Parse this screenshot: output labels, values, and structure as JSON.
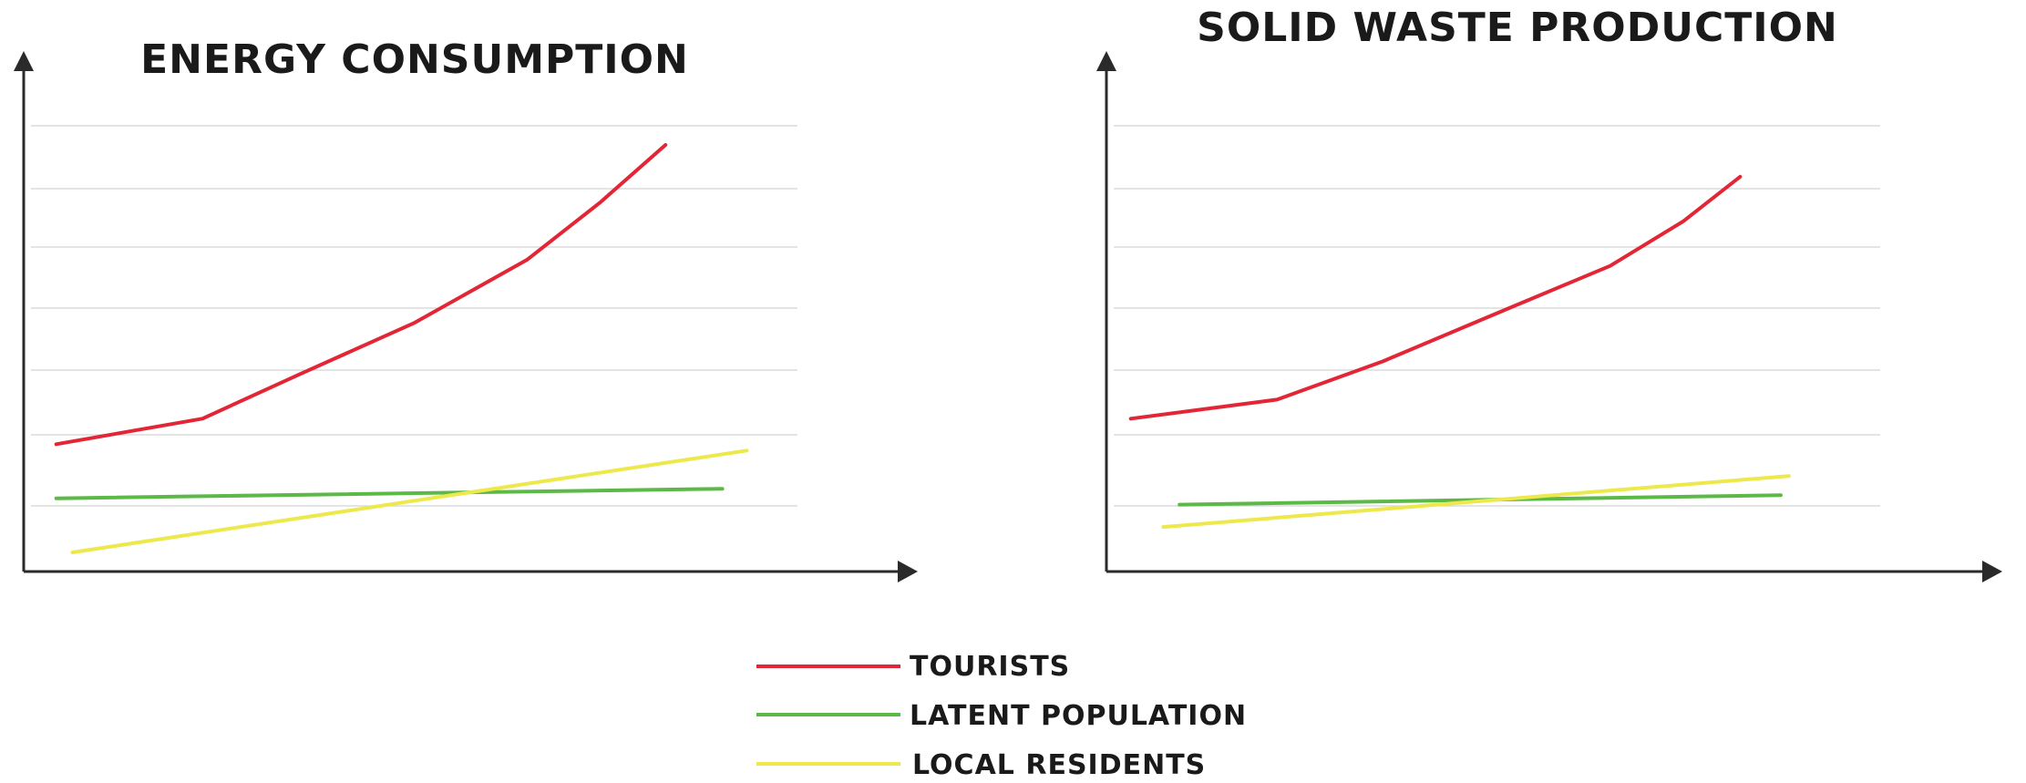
{
  "colors": {
    "tourists": "#e32636",
    "latent_population": "#5cb947",
    "local_residents": "#ede84b",
    "axis": "#2a2a2a",
    "grid": "#d3d3d3"
  },
  "legend": [
    {
      "key": "tourists",
      "label": "TOURISTS"
    },
    {
      "key": "latent_population",
      "label": "LATENT POPULATION"
    },
    {
      "key": "local_residents",
      "label": "LOCAL RESIDENTS"
    }
  ],
  "chart_data": [
    {
      "type": "line",
      "title": "ENERGY CONSUMPTION",
      "xlabel": "",
      "ylabel": "",
      "grid": true,
      "legend_placement": "bottom-center",
      "xlim": [
        0,
        10
      ],
      "ylim": [
        0,
        7
      ],
      "series": [
        {
          "name": "TOURISTS",
          "color_key": "tourists",
          "x": [
            0.4,
            2.2,
            3.4,
            4.8,
            6.2,
            7.1,
            7.9
          ],
          "y": [
            2.0,
            2.4,
            3.1,
            3.9,
            4.9,
            5.8,
            6.7
          ]
        },
        {
          "name": "LATENT POPULATION",
          "color_key": "latent_population",
          "x": [
            0.4,
            8.6
          ],
          "y": [
            1.15,
            1.3
          ]
        },
        {
          "name": "LOCAL RESIDENTS",
          "color_key": "local_residents",
          "x": [
            0.6,
            8.9
          ],
          "y": [
            0.3,
            1.9
          ]
        }
      ]
    },
    {
      "type": "line",
      "title": "SOLID WASTE PRODUCTION",
      "xlabel": "",
      "ylabel": "",
      "grid": true,
      "legend_placement": "bottom-center",
      "xlim": [
        0,
        10
      ],
      "ylim": [
        0,
        7
      ],
      "series": [
        {
          "name": "TOURISTS",
          "color_key": "tourists",
          "x": [
            0.3,
            2.1,
            3.4,
            4.7,
            6.2,
            7.1,
            7.8
          ],
          "y": [
            2.4,
            2.7,
            3.3,
            4.0,
            4.8,
            5.5,
            6.2
          ]
        },
        {
          "name": "LATENT POPULATION",
          "color_key": "latent_population",
          "x": [
            0.9,
            8.3
          ],
          "y": [
            1.05,
            1.2
          ]
        },
        {
          "name": "LOCAL RESIDENTS",
          "color_key": "local_residents",
          "x": [
            0.7,
            8.4
          ],
          "y": [
            0.7,
            1.5
          ]
        }
      ]
    }
  ]
}
